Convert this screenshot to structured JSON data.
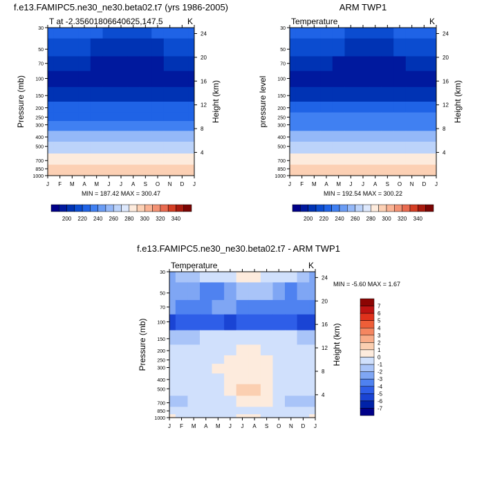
{
  "months": [
    "J",
    "F",
    "M",
    "A",
    "M",
    "J",
    "J",
    "A",
    "S",
    "O",
    "N",
    "D",
    "J"
  ],
  "p_ticks": [
    "30",
    "50",
    "70",
    "100",
    "150",
    "200",
    "250",
    "300",
    "400",
    "500",
    "700",
    "850",
    "1000"
  ],
  "h_ticks": [
    "24",
    "20",
    "16",
    "12",
    "8",
    "4"
  ],
  "chart_data": [
    {
      "type": "heatmap",
      "title": "f.e13.FAMIPC5.ne30_ne30.beta02.t7 (yrs 1986-2005)",
      "subtitle_left": "T at -2.35601806640625,147.5",
      "subtitle_right": "K",
      "ylabel": "Pressure (mb)",
      "ylabel_right": "Height (km)",
      "stats": "MIN = 187.42 MAX = 300.47",
      "levels": [
        190,
        200,
        210,
        220,
        230,
        240,
        250,
        260,
        270,
        280,
        290,
        300,
        310,
        320,
        330,
        340
      ],
      "colorbar_labels": [
        "200",
        "220",
        "240",
        "260",
        "280",
        "300",
        "320",
        "340"
      ],
      "colors": [
        "#000088",
        "#00199E",
        "#0033B4",
        "#0B4CD0",
        "#1F63E6",
        "#4080F2",
        "#6A9CF4",
        "#94B8F8",
        "#BCD3FA",
        "#DDE8FC",
        "#FDEBDD",
        "#FCD0B4",
        "#FAB394",
        "#F39274",
        "#E96B50",
        "#D43E24",
        "#A81A0E",
        "#7A0403"
      ],
      "pressure_levels": [
        30,
        50,
        70,
        100,
        150,
        200,
        250,
        300,
        400,
        500,
        700,
        850,
        1000
      ],
      "values": [
        [
          222,
          222,
          222,
          221,
          220,
          219,
          218,
          218,
          219,
          220,
          221,
          222,
          222
        ],
        [
          212,
          212,
          212,
          211,
          209,
          208,
          207,
          207,
          208,
          209,
          211,
          212,
          212
        ],
        [
          200,
          201,
          201,
          200,
          198,
          197,
          196,
          196,
          197,
          198,
          200,
          201,
          200
        ],
        [
          196,
          196,
          196,
          196,
          195,
          194,
          194,
          194,
          195,
          195,
          196,
          196,
          196
        ],
        [
          208,
          208,
          208,
          208,
          208,
          208,
          208,
          208,
          208,
          208,
          208,
          208,
          208
        ],
        [
          220,
          220,
          220,
          220,
          220,
          220,
          220,
          220,
          220,
          220,
          220,
          220,
          220
        ],
        [
          229,
          229,
          229,
          229,
          229,
          229,
          229,
          229,
          229,
          229,
          229,
          229,
          229
        ],
        [
          237,
          237,
          237,
          237,
          237,
          237,
          237,
          237,
          237,
          237,
          237,
          237,
          237
        ],
        [
          252,
          252,
          252,
          252,
          252,
          252,
          252,
          252,
          252,
          252,
          252,
          252,
          252
        ],
        [
          264,
          264,
          264,
          264,
          264,
          264,
          264,
          264,
          264,
          264,
          264,
          264,
          264
        ],
        [
          283,
          283,
          283,
          283,
          283,
          283,
          283,
          283,
          283,
          283,
          283,
          283,
          283
        ],
        [
          292,
          292,
          292,
          292,
          292,
          292,
          292,
          292,
          292,
          292,
          292,
          292,
          292
        ],
        [
          298,
          298,
          298,
          298,
          298,
          298,
          298,
          298,
          298,
          298,
          298,
          298,
          298
        ]
      ]
    },
    {
      "type": "heatmap",
      "title": "ARM TWP1",
      "subtitle_left": "Temperature",
      "subtitle_right": "K",
      "ylabel": "pressure level",
      "ylabel_right": "Height (km)",
      "stats": "MIN = 192.54 MAX = 300.22",
      "levels": [
        190,
        200,
        210,
        220,
        230,
        240,
        250,
        260,
        270,
        280,
        290,
        300,
        310,
        320,
        330,
        340
      ],
      "colorbar_labels": [
        "200",
        "220",
        "240",
        "260",
        "280",
        "300",
        "320",
        "340"
      ],
      "colors": [
        "#000088",
        "#00199E",
        "#0033B4",
        "#0B4CD0",
        "#1F63E6",
        "#4080F2",
        "#6A9CF4",
        "#94B8F8",
        "#BCD3FA",
        "#DDE8FC",
        "#FDEBDD",
        "#FCD0B4",
        "#FAB394",
        "#F39274",
        "#E96B50",
        "#D43E24",
        "#A81A0E",
        "#7A0403"
      ],
      "pressure_levels": [
        30,
        50,
        70,
        100,
        150,
        200,
        250,
        300,
        400,
        500,
        700,
        850,
        1000
      ],
      "values": [
        [
          222,
          222,
          222,
          221,
          220,
          219,
          218,
          218,
          219,
          220,
          221,
          222,
          222
        ],
        [
          212,
          212,
          212,
          211,
          210,
          208,
          207,
          207,
          208,
          210,
          211,
          212,
          212
        ],
        [
          203,
          203,
          202,
          201,
          199,
          197,
          195,
          195,
          197,
          199,
          201,
          203,
          203
        ],
        [
          196,
          196,
          196,
          196,
          196,
          195,
          194,
          195,
          196,
          196,
          196,
          196,
          196
        ],
        [
          209,
          209,
          209,
          209,
          209,
          209,
          209,
          209,
          209,
          209,
          209,
          209,
          209
        ],
        [
          221,
          221,
          221,
          221,
          221,
          221,
          221,
          221,
          221,
          221,
          221,
          221,
          221
        ],
        [
          230,
          230,
          230,
          230,
          230,
          230,
          230,
          230,
          230,
          230,
          230,
          230,
          230
        ],
        [
          238,
          238,
          238,
          238,
          238,
          238,
          238,
          238,
          238,
          238,
          238,
          238,
          238
        ],
        [
          253,
          253,
          253,
          253,
          253,
          253,
          253,
          253,
          253,
          253,
          253,
          253,
          253
        ],
        [
          266,
          266,
          266,
          266,
          266,
          266,
          266,
          266,
          266,
          266,
          266,
          266,
          266
        ],
        [
          281,
          281,
          281,
          281,
          281,
          281,
          281,
          281,
          281,
          281,
          281,
          281,
          281
        ],
        [
          291,
          291,
          291,
          291,
          291,
          291,
          291,
          291,
          291,
          291,
          291,
          291,
          291
        ],
        [
          298,
          298,
          298,
          298,
          298,
          298,
          298,
          298,
          298,
          298,
          298,
          298,
          298
        ]
      ]
    },
    {
      "type": "heatmap",
      "title": "f.e13.FAMIPC5.ne30_ne30.beta02.t7 - ARM TWP1",
      "subtitle_left": "Temperature",
      "subtitle_right": "K",
      "ylabel": "Pressure (mb)",
      "ylabel_right": "Height (km)",
      "stats": "MIN =  -5.60 MAX =   1.67",
      "levels": [
        -7,
        -6,
        -5,
        -4,
        -3,
        -2,
        -1,
        0,
        1,
        2,
        3,
        4,
        5,
        6,
        7
      ],
      "colorbar_labels": [
        "7",
        "6",
        "5",
        "4",
        "3",
        "2",
        "1",
        "0",
        "-1",
        "-2",
        "-3",
        "-4",
        "-5",
        "-6",
        "-7"
      ],
      "colors": [
        "#000088",
        "#0022A8",
        "#1A44D4",
        "#2E5EE8",
        "#4F82F0",
        "#7FA6F4",
        "#A9C4F8",
        "#D0E0FC",
        "#FDEBDD",
        "#FBCFB1",
        "#F9AC88",
        "#F58660",
        "#EE5E38",
        "#E0321C",
        "#BE1412",
        "#8C0503"
      ],
      "pressure_levels": [
        30,
        50,
        70,
        100,
        150,
        200,
        250,
        300,
        400,
        500,
        700,
        850,
        1000
      ],
      "values": [
        [
          -2.5,
          -2,
          -1.5,
          -1,
          -1,
          -0.5,
          0.3,
          0.5,
          -0.5,
          -1,
          -0.5,
          -1.5,
          -2.5
        ],
        [
          -3,
          -3,
          -3,
          -4,
          -3.5,
          -2.5,
          -2,
          -2,
          -2,
          -2.5,
          -3.5,
          -3,
          -3
        ],
        [
          -3,
          -4,
          -4,
          -3.5,
          -3,
          -3,
          -4,
          -4,
          -4,
          -4,
          -3.5,
          -4,
          -3.5
        ],
        [
          -5.5,
          -5,
          -5,
          -4.5,
          -5,
          -5.5,
          -5,
          -5,
          -5,
          -5,
          -5,
          -5.5,
          -5.5
        ],
        [
          -1.5,
          -1.5,
          -1.2,
          -1,
          -1,
          -0.8,
          -0.5,
          -0.5,
          -0.5,
          -0.8,
          -1,
          -1.2,
          -1.5
        ],
        [
          -0.5,
          -0.5,
          -0.5,
          -0.5,
          -0.3,
          -0.2,
          0.3,
          0.4,
          -0.2,
          -0.5,
          -0.5,
          -0.5,
          -0.5
        ],
        [
          -0.5,
          -0.5,
          -0.5,
          -0.3,
          -0.2,
          0.3,
          0.5,
          0.5,
          0.3,
          -0.3,
          -0.5,
          -0.5,
          -0.5
        ],
        [
          -0.5,
          -0.5,
          -0.5,
          -0.3,
          0.2,
          0.5,
          0.5,
          0.5,
          0.5,
          -0.2,
          -0.5,
          -0.5,
          -0.5
        ],
        [
          -0.5,
          -0.5,
          -0.5,
          -0.5,
          -0.2,
          0.3,
          0.5,
          0.6,
          0.5,
          -0.2,
          -0.5,
          -0.5,
          -0.5
        ],
        [
          -0.5,
          -0.5,
          -0.5,
          -0.5,
          -0.3,
          0.2,
          1.3,
          1.5,
          0.5,
          -0.2,
          -0.5,
          -0.5,
          -0.5
        ],
        [
          -1.2,
          -1.2,
          -0.5,
          -0.5,
          -0.4,
          -0.3,
          0.3,
          0.4,
          0.2,
          -0.5,
          -1.2,
          -1.2,
          -1.2
        ],
        [
          -0.5,
          -0.5,
          -0.5,
          -0.5,
          -0.5,
          -0.3,
          -0.3,
          -0.3,
          -0.5,
          -0.5,
          -0.5,
          -0.5,
          -0.5
        ],
        [
          0.3,
          -0.3,
          -0.5,
          -0.5,
          -0.5,
          -0.3,
          0.3,
          0.3,
          -0.3,
          -0.5,
          -0.5,
          -0.5,
          0.3
        ]
      ]
    }
  ]
}
